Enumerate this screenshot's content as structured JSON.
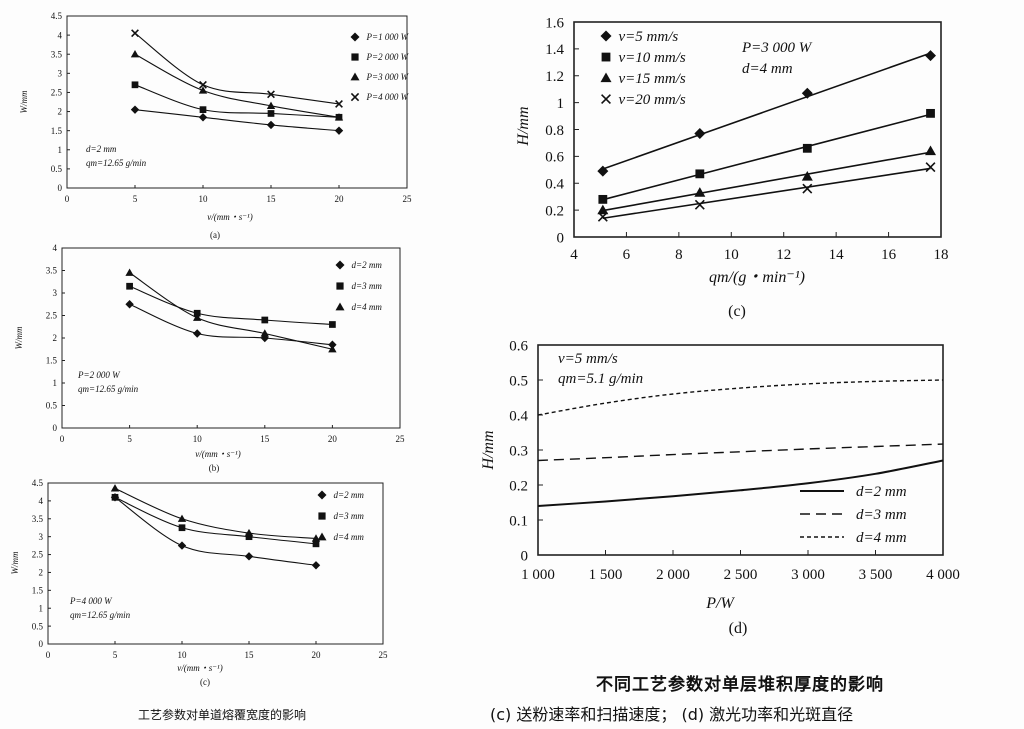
{
  "left_caption": "工艺参数对单道熔覆宽度的影响",
  "right_title": "不同工艺参数对单层堆积厚度的影响",
  "right_subtitle": "(c) 送粉速率和扫描速度； (d) 激光功率和光斑直径",
  "chart_data": [
    {
      "id": "a",
      "type": "scatter",
      "label": "(a)",
      "xlabel": "v/(mm・s⁻¹)",
      "ylabel": "W/mm",
      "xlim": [
        0,
        25
      ],
      "ylim": [
        0,
        4.5
      ],
      "xticks": [
        0,
        5,
        10,
        15,
        20,
        25
      ],
      "yticks": [
        0,
        0.5,
        1,
        1.5,
        2,
        2.5,
        3,
        3.5,
        4,
        4.5
      ],
      "annotations": [
        "d=2 mm",
        "qm=12.65 g/min"
      ],
      "series": [
        {
          "name": "P=1 000 W",
          "marker": "diamond",
          "x": [
            5,
            10,
            15,
            20
          ],
          "y": [
            2.05,
            1.85,
            1.65,
            1.5
          ]
        },
        {
          "name": "P=2 000 W",
          "marker": "square",
          "x": [
            5,
            10,
            15,
            20
          ],
          "y": [
            2.7,
            2.05,
            1.95,
            1.85
          ]
        },
        {
          "name": "P=3 000 W",
          "marker": "triangle",
          "x": [
            5,
            10,
            15,
            20
          ],
          "y": [
            3.5,
            2.55,
            2.15,
            1.85
          ]
        },
        {
          "name": "P=4 000 W",
          "marker": "x",
          "x": [
            5,
            10,
            15,
            20
          ],
          "y": [
            4.05,
            2.7,
            2.45,
            2.2
          ]
        }
      ]
    },
    {
      "id": "b",
      "type": "scatter",
      "label": "(b)",
      "xlabel": "v/(mm・s⁻¹)",
      "ylabel": "W/mm",
      "xlim": [
        0,
        25
      ],
      "ylim": [
        0,
        4
      ],
      "xticks": [
        0,
        5,
        10,
        15,
        20,
        25
      ],
      "yticks": [
        0,
        0.5,
        1,
        1.5,
        2,
        2.5,
        3,
        3.5,
        4
      ],
      "annotations": [
        "P=2 000 W",
        "qm=12.65 g/min"
      ],
      "series": [
        {
          "name": "d=2 mm",
          "marker": "diamond",
          "x": [
            5,
            10,
            15,
            20
          ],
          "y": [
            2.75,
            2.1,
            2.0,
            1.85
          ]
        },
        {
          "name": "d=3 mm",
          "marker": "square",
          "x": [
            5,
            10,
            15,
            20
          ],
          "y": [
            3.15,
            2.55,
            2.4,
            2.3
          ]
        },
        {
          "name": "d=4 mm",
          "marker": "triangle",
          "x": [
            5,
            10,
            15,
            20
          ],
          "y": [
            3.45,
            2.45,
            2.1,
            1.75
          ]
        }
      ]
    },
    {
      "id": "c_left",
      "type": "scatter",
      "label": "(c)",
      "xlabel": "v/(mm・s⁻¹)",
      "ylabel": "W/mm",
      "xlim": [
        0,
        25
      ],
      "ylim": [
        0,
        4.5
      ],
      "xticks": [
        0,
        5,
        10,
        15,
        20,
        25
      ],
      "yticks": [
        0,
        0.5,
        1,
        1.5,
        2,
        2.5,
        3,
        3.5,
        4,
        4.5
      ],
      "annotations": [
        "P=4 000 W",
        "qm=12.65 g/min"
      ],
      "series": [
        {
          "name": "d=2 mm",
          "marker": "diamond",
          "x": [
            5,
            10,
            15,
            20
          ],
          "y": [
            4.1,
            2.75,
            2.45,
            2.2
          ]
        },
        {
          "name": "d=3 mm",
          "marker": "square",
          "x": [
            5,
            10,
            15,
            20
          ],
          "y": [
            4.1,
            3.25,
            3.0,
            2.8
          ]
        },
        {
          "name": "d=4 mm",
          "marker": "triangle",
          "x": [
            5,
            10,
            15,
            20
          ],
          "y": [
            4.35,
            3.5,
            3.1,
            2.95
          ]
        }
      ]
    },
    {
      "id": "c_right",
      "type": "scatter",
      "label": "(c)",
      "xlabel": "qm/(g・min⁻¹)",
      "ylabel": "H/mm",
      "xlim": [
        4,
        18
      ],
      "ylim": [
        0,
        1.6
      ],
      "xticks": [
        4,
        6,
        8,
        10,
        12,
        14,
        16,
        18
      ],
      "yticks": [
        0,
        0.2,
        0.4,
        0.6,
        0.8,
        1,
        1.2,
        1.4,
        1.6
      ],
      "annotations": [
        "P=3 000 W",
        "d=4 mm"
      ],
      "series": [
        {
          "name": "v=5 mm/s",
          "marker": "diamond",
          "x": [
            5.1,
            8.8,
            12.9,
            17.6
          ],
          "y": [
            0.49,
            0.77,
            1.07,
            1.35
          ]
        },
        {
          "name": "v=10 mm/s",
          "marker": "square",
          "x": [
            5.1,
            8.8,
            12.9,
            17.6
          ],
          "y": [
            0.28,
            0.47,
            0.66,
            0.92
          ]
        },
        {
          "name": "v=15 mm/s",
          "marker": "triangle",
          "x": [
            5.1,
            8.8,
            12.9,
            17.6
          ],
          "y": [
            0.2,
            0.33,
            0.45,
            0.64
          ]
        },
        {
          "name": "v=20 mm/s",
          "marker": "x",
          "x": [
            5.1,
            8.8,
            12.9,
            17.6
          ],
          "y": [
            0.15,
            0.24,
            0.36,
            0.52
          ]
        }
      ]
    },
    {
      "id": "d",
      "type": "line",
      "label": "(d)",
      "xlabel": "P/W",
      "ylabel": "H/mm",
      "xlim": [
        1000,
        4000
      ],
      "ylim": [
        0,
        0.6
      ],
      "xticks": [
        1000,
        1500,
        2000,
        2500,
        3000,
        3500,
        4000
      ],
      "xtick_labels": [
        "1 000",
        "1 500",
        "2 000",
        "2 500",
        "3 000",
        "3 500",
        "4 000"
      ],
      "yticks": [
        0,
        0.1,
        0.2,
        0.3,
        0.4,
        0.5,
        0.6
      ],
      "annotations": [
        "v=5 mm/s",
        "qm=5.1 g/min"
      ],
      "series": [
        {
          "name": "d=2 mm",
          "style": "solid",
          "x": [
            1000,
            1500,
            2000,
            2500,
            3000,
            3500,
            4000
          ],
          "y": [
            0.14,
            0.153,
            0.168,
            0.185,
            0.205,
            0.232,
            0.27
          ]
        },
        {
          "name": "d=3 mm",
          "style": "dashed",
          "x": [
            1000,
            1500,
            2000,
            2500,
            3000,
            3500,
            4000
          ],
          "y": [
            0.27,
            0.278,
            0.287,
            0.295,
            0.303,
            0.31,
            0.317
          ]
        },
        {
          "name": "d=4 mm",
          "style": "dotted",
          "x": [
            1000,
            1500,
            2000,
            2500,
            3000,
            3500,
            4000
          ],
          "y": [
            0.4,
            0.434,
            0.46,
            0.477,
            0.489,
            0.496,
            0.5
          ]
        }
      ]
    }
  ]
}
